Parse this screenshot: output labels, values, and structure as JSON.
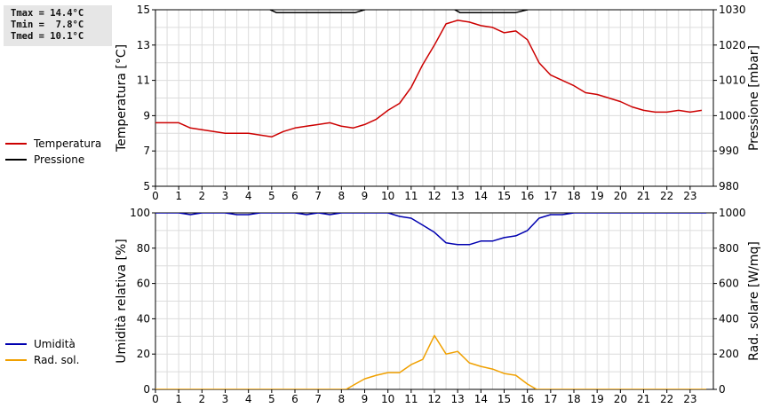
{
  "stats": {
    "tmax": "Tmax = 14.4°C",
    "tmin": "Tmin =  7.8°C",
    "tmed": "Tmed = 10.1°C"
  },
  "chart_data": [
    {
      "type": "line",
      "title": "",
      "xlabel": "",
      "xlim": [
        0,
        24
      ],
      "xticks": [
        0,
        1,
        2,
        3,
        4,
        5,
        6,
        7,
        8,
        9,
        10,
        11,
        12,
        13,
        14,
        15,
        16,
        17,
        18,
        19,
        20,
        21,
        22,
        23
      ],
      "ylabel": "Temperatura [°C]",
      "ylim": [
        5,
        15
      ],
      "yticks": [
        5,
        7,
        9,
        11,
        13,
        15
      ],
      "y2label": "Pressione [mbar]",
      "y2lim": [
        980,
        1030
      ],
      "y2ticks": [
        980,
        990,
        1000,
        1010,
        1020,
        1030
      ],
      "grid": true,
      "legend_placement": "left",
      "series": [
        {
          "name": "Temperatura",
          "axis": "left",
          "color": "#cc0000",
          "x": [
            0,
            1,
            1.5,
            2,
            2.5,
            3,
            3.5,
            4,
            4.5,
            5,
            5.5,
            6,
            6.5,
            7,
            7.5,
            8,
            8.5,
            9,
            9.5,
            10,
            10.5,
            11,
            11.5,
            12,
            12.5,
            13,
            13.5,
            14,
            14.5,
            15,
            15.5,
            16,
            16.5,
            17,
            17.5,
            18,
            18.5,
            19,
            19.5,
            20,
            20.5,
            21,
            21.5,
            22,
            22.5,
            23,
            23.5
          ],
          "values": [
            8.6,
            8.6,
            8.3,
            8.2,
            8.1,
            8.0,
            8.0,
            8.0,
            7.9,
            7.8,
            8.1,
            8.3,
            8.4,
            8.5,
            8.6,
            8.4,
            8.3,
            8.5,
            8.8,
            9.3,
            9.7,
            10.6,
            11.9,
            13.0,
            14.2,
            14.4,
            14.3,
            14.1,
            14.0,
            13.7,
            13.8,
            13.3,
            12.0,
            11.3,
            11.0,
            10.7,
            10.3,
            10.2,
            10.0,
            9.8,
            9.5,
            9.3,
            9.2,
            9.2,
            9.3,
            9.2,
            9.3
          ]
        },
        {
          "name": "Pressione",
          "axis": "right",
          "color": "#000000",
          "x": [
            4.6,
            5.2,
            6.0,
            7.0,
            8.0,
            8.6,
            9.0,
            9.5,
            10,
            11,
            12,
            12.6,
            13.1,
            14,
            15,
            15.5,
            16.0,
            16.5
          ],
          "values": [
            1031,
            1029.2,
            1029.2,
            1029.2,
            1029.2,
            1029.2,
            1030,
            1031,
            1032,
            1033,
            1032,
            1031,
            1029.2,
            1029.2,
            1029.2,
            1029.2,
            1030,
            1031
          ]
        }
      ]
    },
    {
      "type": "line",
      "title": "",
      "xlabel": "",
      "xlim": [
        0,
        24
      ],
      "xticks": [
        0,
        1,
        2,
        3,
        4,
        5,
        6,
        7,
        8,
        9,
        10,
        11,
        12,
        13,
        14,
        15,
        16,
        17,
        18,
        19,
        20,
        21,
        22,
        23
      ],
      "ylabel": "Umidità relativa [%]",
      "ylim": [
        0,
        100
      ],
      "yticks": [
        0,
        20,
        40,
        60,
        80,
        100
      ],
      "y2label": "Rad. solare [W/mq]",
      "y2lim": [
        0,
        1000
      ],
      "y2ticks": [
        0,
        200,
        400,
        600,
        800,
        1000
      ],
      "grid": true,
      "legend_placement": "left",
      "series": [
        {
          "name": "Umidità",
          "axis": "left",
          "color": "#0000b0",
          "x": [
            0,
            1,
            1.5,
            2,
            3,
            3.5,
            4,
            4.5,
            5,
            6,
            6.5,
            7,
            7.5,
            8,
            9,
            10,
            10.5,
            11,
            11.5,
            12,
            12.5,
            13,
            13.5,
            14,
            14.5,
            15,
            15.5,
            16,
            16.5,
            17,
            17.5,
            18,
            19,
            20,
            21,
            22,
            23,
            23.7
          ],
          "values": [
            100,
            100,
            99,
            100,
            100,
            99,
            99,
            100,
            100,
            100,
            99,
            100,
            99,
            100,
            100,
            100,
            98,
            97,
            93,
            89,
            83,
            82,
            82,
            84,
            84,
            86,
            87,
            90,
            97,
            99,
            99,
            100,
            100,
            100,
            100,
            100,
            100,
            100
          ]
        },
        {
          "name": "Rad. sol.",
          "axis": "right",
          "color": "#f0a000",
          "x": [
            0,
            1,
            2,
            3,
            4,
            5,
            6,
            7,
            8,
            8.2,
            8.6,
            9,
            9.5,
            10,
            10.5,
            11,
            11.5,
            12,
            12.5,
            13,
            13.5,
            14,
            14.5,
            15,
            15.5,
            16,
            16.4,
            17,
            18,
            19,
            20,
            21,
            22,
            23,
            23.7
          ],
          "values": [
            0,
            0,
            0,
            0,
            0,
            0,
            0,
            0,
            0,
            0,
            30,
            60,
            80,
            95,
            95,
            140,
            170,
            305,
            200,
            215,
            150,
            130,
            115,
            90,
            80,
            30,
            0,
            0,
            0,
            0,
            0,
            0,
            0,
            0,
            0
          ]
        }
      ]
    }
  ]
}
